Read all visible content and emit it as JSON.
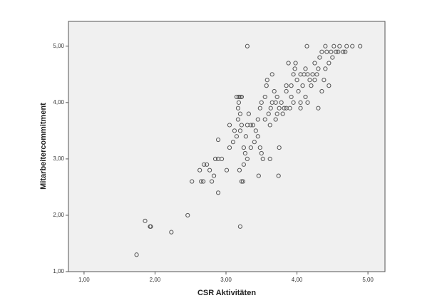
{
  "chart_data": {
    "type": "scatter",
    "x_label": "CSR Aktivitäten",
    "y_label": "Mitarbeitercommitment",
    "x": [
      1.74,
      1.86,
      1.93,
      1.94,
      2.23,
      2.46,
      3.2,
      2.52,
      2.65,
      2.68,
      2.8,
      2.89,
      2.83,
      2.63,
      2.69,
      2.73,
      2.77,
      2.85,
      2.89,
      2.94,
      2.89,
      3.01,
      3.22,
      3.24,
      3.25,
      3.3,
      3.19,
      3.46,
      3.74,
      3.3,
      4.14,
      4.89,
      3.05,
      3.1,
      3.12,
      3.15,
      3.15,
      3.18,
      3.2,
      3.22,
      3.18,
      3.17,
      3.2,
      3.17,
      3.22,
      3.2,
      3.25,
      3.27,
      3.28,
      3.3,
      3.32,
      3.35,
      3.38,
      3.4,
      3.42,
      3.45,
      3.45,
      3.48,
      3.5,
      3.48,
      3.5,
      3.52,
      3.55,
      3.55,
      3.57,
      3.58,
      3.6,
      3.62,
      3.63,
      3.65,
      3.65,
      3.68,
      3.7,
      3.72,
      3.72,
      3.75,
      3.75,
      3.78,
      3.8,
      3.82,
      3.85,
      3.85,
      3.88,
      3.9,
      3.92,
      3.92,
      3.95,
      3.95,
      3.97,
      3.98,
      4.0,
      4.02,
      4.05,
      4.05,
      4.08,
      4.1,
      4.12,
      4.12,
      4.15,
      4.15,
      4.18,
      4.2,
      4.22,
      4.25,
      4.28,
      4.3,
      4.3,
      4.32,
      4.35,
      4.35,
      4.38,
      4.4,
      4.4,
      4.42,
      4.45,
      4.45,
      4.48,
      4.5,
      4.52,
      4.55,
      4.58,
      4.6,
      4.65,
      4.68,
      4.7,
      4.78,
      3.35,
      3.62,
      3.7,
      3.85,
      4.05,
      4.25,
      3.05
    ],
    "values": [
      1.3,
      1.9,
      1.8,
      1.8,
      1.7,
      2.0,
      1.8,
      2.6,
      2.6,
      2.6,
      2.6,
      2.4,
      2.7,
      2.8,
      2.9,
      2.9,
      2.8,
      3.0,
      3.0,
      3.0,
      3.34,
      2.8,
      2.6,
      2.6,
      2.9,
      3.0,
      2.8,
      2.7,
      2.7,
      5.0,
      5.0,
      5.0,
      3.6,
      3.3,
      3.5,
      3.4,
      4.1,
      4.1,
      4.1,
      4.1,
      4.0,
      3.9,
      3.8,
      3.7,
      3.6,
      3.5,
      3.2,
      3.1,
      3.4,
      3.6,
      3.8,
      3.6,
      3.6,
      3.3,
      3.5,
      3.4,
      3.7,
      3.9,
      4.0,
      3.2,
      3.1,
      3.0,
      3.7,
      4.1,
      4.3,
      4.4,
      3.8,
      3.6,
      3.9,
      4.0,
      4.5,
      4.2,
      3.7,
      3.8,
      4.1,
      3.9,
      3.2,
      4.0,
      3.8,
      3.9,
      4.2,
      4.3,
      4.7,
      3.9,
      4.1,
      4.3,
      4.0,
      4.5,
      4.6,
      4.7,
      4.4,
      4.2,
      3.9,
      4.0,
      4.3,
      4.5,
      4.1,
      4.6,
      4.0,
      4.5,
      4.4,
      4.3,
      4.5,
      4.7,
      4.5,
      3.9,
      4.6,
      4.8,
      4.9,
      4.2,
      4.4,
      4.6,
      5.0,
      4.9,
      4.7,
      4.3,
      4.9,
      4.8,
      5.0,
      4.9,
      4.9,
      5.0,
      4.9,
      4.9,
      5.0,
      5.0,
      3.2,
      3.0,
      4.0,
      3.9,
      4.5,
      4.4,
      3.2
    ],
    "marker_color": "#555555",
    "xlim": [
      0.78,
      5.24
    ],
    "ylim": [
      1,
      5.44
    ],
    "xticks": [
      {
        "value": 1,
        "label": "1,00"
      },
      {
        "value": 2,
        "label": "2,00"
      },
      {
        "value": 3,
        "label": "3,00"
      },
      {
        "value": 4,
        "label": "4,00"
      },
      {
        "value": 5,
        "label": "5,00"
      }
    ],
    "yticks": [
      {
        "value": 1,
        "label": "1,00"
      },
      {
        "value": 2,
        "label": "2,00"
      },
      {
        "value": 3,
        "label": "3,00"
      },
      {
        "value": 4,
        "label": "4,00"
      },
      {
        "value": 5,
        "label": "5,00"
      }
    ]
  }
}
